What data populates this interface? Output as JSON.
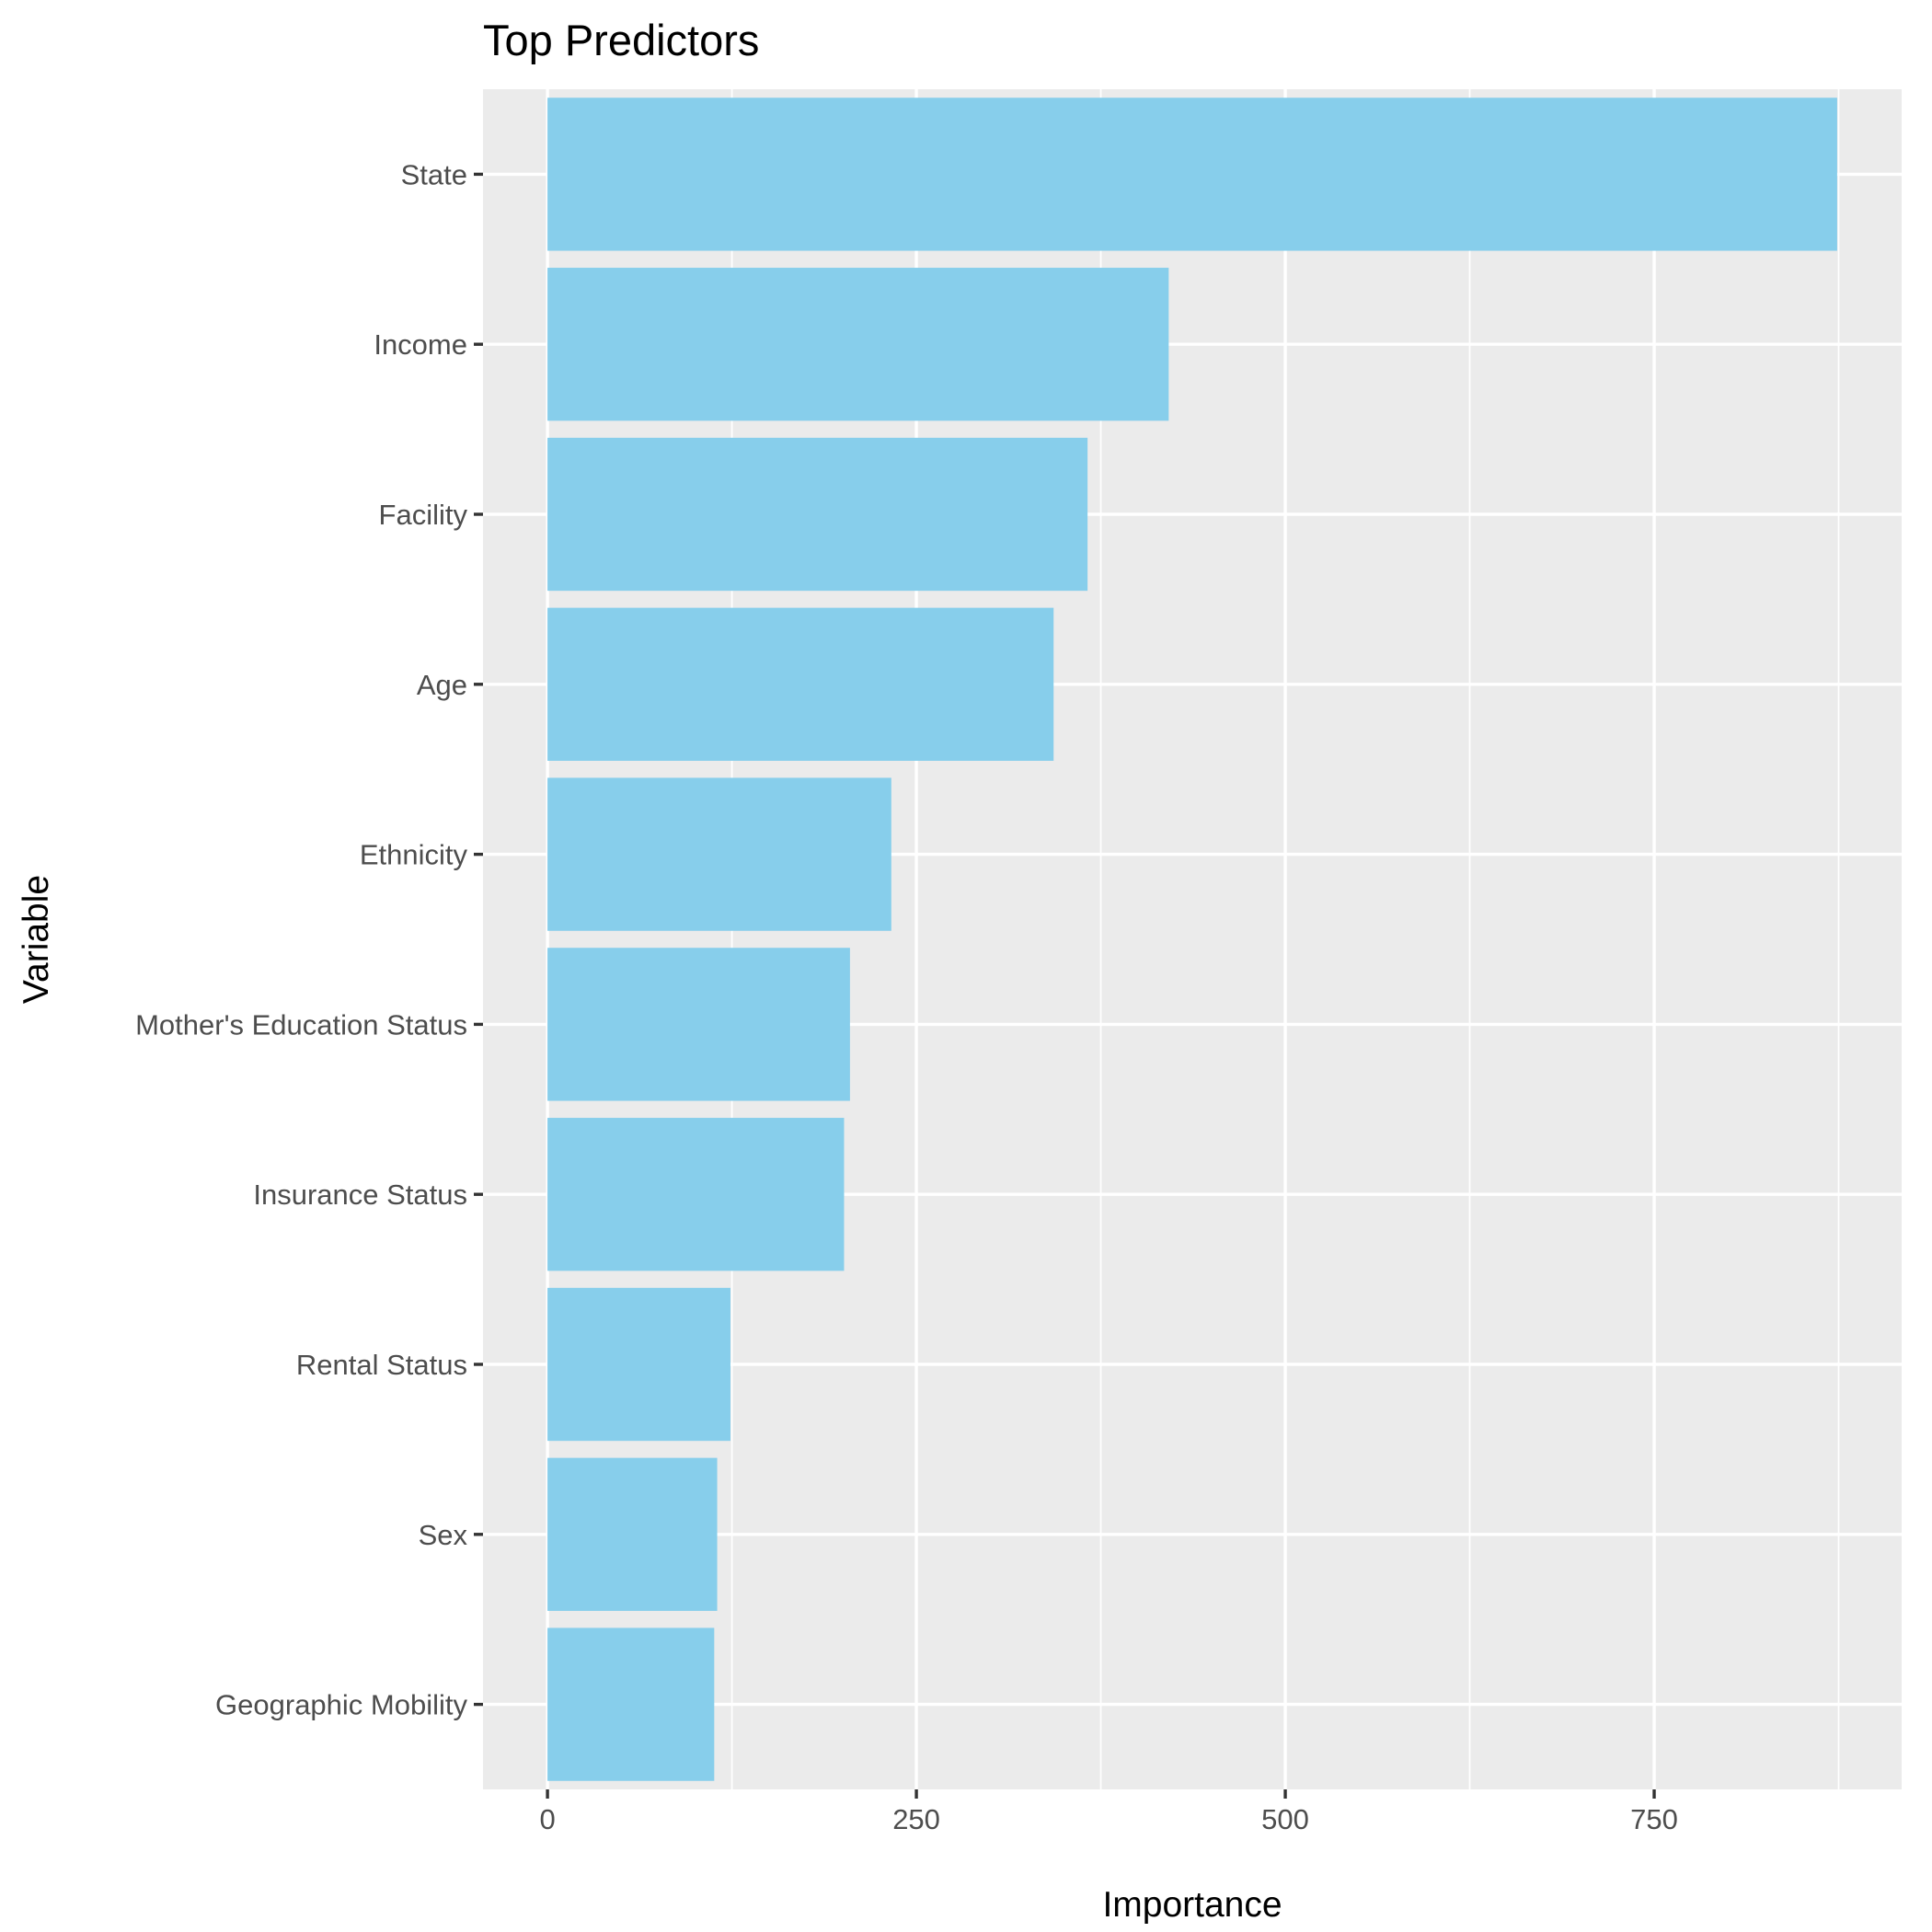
{
  "chart_data": {
    "type": "bar",
    "orientation": "horizontal",
    "title": "Top Predictors",
    "xlabel": "Importance",
    "ylabel": "Variable",
    "categories": [
      "State",
      "Income",
      "Facility",
      "Age",
      "Ethnicity",
      "Mother's Education Status",
      "Insurance Status",
      "Rental Status",
      "Sex",
      "Geographic Mobility"
    ],
    "values": [
      874,
      421,
      366,
      343,
      233,
      205,
      201,
      124,
      115,
      113
    ],
    "xlim": [
      -43.7,
      917.7
    ],
    "xticks": [
      0,
      250,
      500,
      750
    ],
    "xtick_labels": [
      "0",
      "250",
      "500",
      "750"
    ],
    "x_minor_ticks": [
      125,
      375,
      625,
      875
    ],
    "grid": true,
    "legend": "none",
    "bar_color": "#87ceeb",
    "panel_color": "#ebebeb"
  }
}
